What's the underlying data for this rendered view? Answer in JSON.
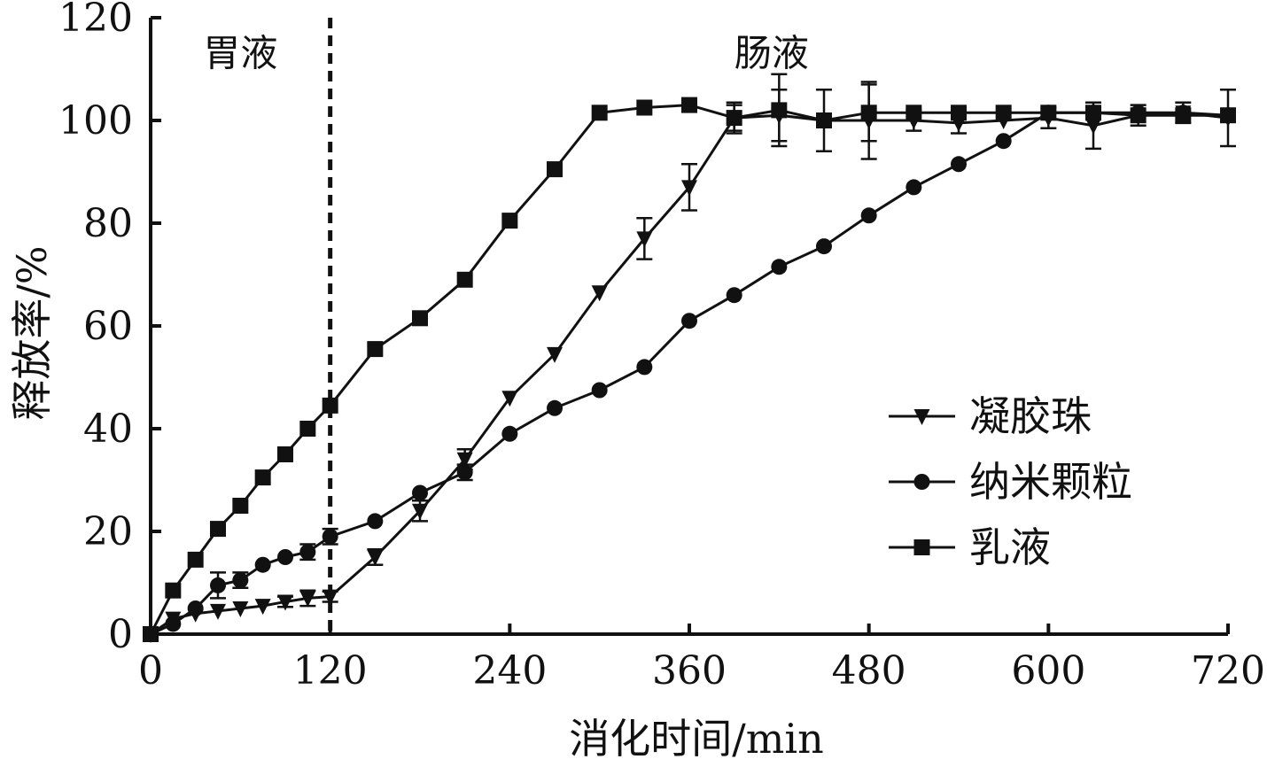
{
  "chart_data": {
    "type": "line",
    "xlabel": "消化时间/min",
    "ylabel": "释放率/%",
    "xlim": [
      0,
      720
    ],
    "ylim": [
      0,
      120
    ],
    "x_ticks": [
      0,
      120,
      240,
      360,
      480,
      600,
      720
    ],
    "y_ticks": [
      0,
      20,
      40,
      60,
      80,
      100,
      120
    ],
    "grid": false,
    "legend_position": "right",
    "annotations": [
      {
        "text": "胃液",
        "x": 60,
        "y": 113
      },
      {
        "text": "肠液",
        "x": 415,
        "y": 113
      }
    ],
    "reference_lines": [
      {
        "x": 120,
        "style": "dashed"
      }
    ],
    "series": [
      {
        "name": "凝胶珠",
        "marker": "triangle-down",
        "x": [
          0,
          15,
          30,
          45,
          60,
          75,
          90,
          105,
          120,
          150,
          180,
          210,
          240,
          270,
          300,
          330,
          360,
          390,
          420,
          450,
          480,
          510,
          540,
          570,
          600,
          630,
          660,
          690,
          720
        ],
        "y": [
          0,
          3,
          4,
          4.5,
          5,
          5.5,
          6.3,
          7,
          7.3,
          15,
          24,
          34,
          46,
          54.5,
          66.5,
          77,
          87,
          100.5,
          101,
          100,
          100,
          100,
          99.5,
          100,
          100.5,
          99,
          101,
          101.5,
          100.5
        ],
        "error": [
          0,
          0,
          0,
          0,
          0,
          0,
          1,
          1.5,
          1,
          1.5,
          2,
          2,
          0,
          0,
          0,
          4,
          4.5,
          2.5,
          5,
          0,
          7.5,
          2,
          2,
          0,
          2,
          4.5,
          2,
          2,
          5.5
        ]
      },
      {
        "name": "纳米颗粒",
        "marker": "circle",
        "x": [
          0,
          15,
          30,
          45,
          60,
          75,
          90,
          105,
          120,
          150,
          180,
          210,
          240,
          270,
          300,
          330,
          360,
          390,
          420,
          450,
          480,
          510,
          540,
          570,
          600,
          630,
          660,
          690,
          720
        ],
        "y": [
          0,
          2,
          5,
          9.5,
          10.5,
          13.5,
          15,
          16,
          19,
          22,
          27.5,
          31.5,
          39,
          44,
          47.5,
          52,
          61,
          66,
          71.5,
          75.5,
          81.5,
          87,
          91.5,
          96,
          101.5,
          101.5,
          101.5,
          101.5,
          101
        ],
        "error": [
          0,
          0,
          0,
          2.5,
          1.5,
          0,
          0,
          1.5,
          1.5,
          0,
          0,
          1.5,
          0,
          0,
          0,
          0,
          0,
          0,
          0,
          0,
          0,
          0,
          0,
          0,
          0,
          0,
          0,
          0,
          0
        ]
      },
      {
        "name": "乳液",
        "marker": "square",
        "x": [
          0,
          15,
          30,
          45,
          60,
          75,
          90,
          105,
          120,
          150,
          180,
          210,
          240,
          270,
          300,
          330,
          360,
          390,
          420,
          450,
          480,
          510,
          540,
          570,
          600,
          630,
          660,
          690,
          720
        ],
        "y": [
          0,
          8.5,
          14.5,
          20.5,
          25,
          30.5,
          35,
          40,
          44.5,
          55.5,
          61.5,
          69,
          80.5,
          90.5,
          101.5,
          102.5,
          103,
          100.5,
          102,
          100,
          101.5,
          101.5,
          101.5,
          101.5,
          101.5,
          101.5,
          101,
          101,
          101
        ],
        "error": [
          0,
          0,
          0,
          0,
          0,
          0,
          0,
          0,
          0,
          0,
          0,
          0,
          0,
          0,
          0,
          0,
          0,
          3,
          7,
          6,
          5.5,
          0,
          0,
          0,
          0,
          0,
          0,
          0,
          0
        ]
      }
    ]
  }
}
